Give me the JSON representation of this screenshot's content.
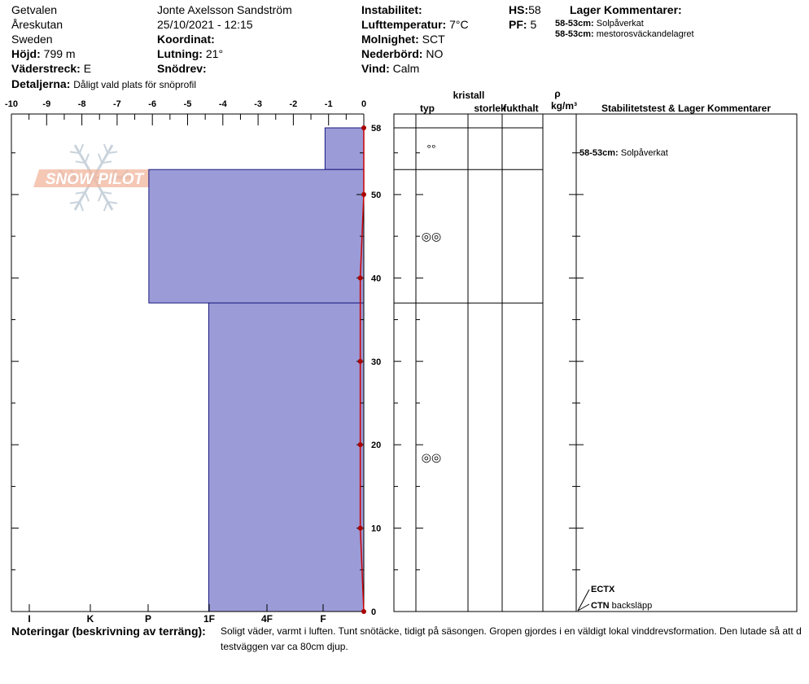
{
  "header": {
    "location": "Getvalen",
    "area": "Åreskutan",
    "country": "Sweden",
    "observer": "Jonte Axelsson Sandström",
    "datetime": "25/10/2021 - 12:15",
    "fields": [
      {
        "label": "Höjd:",
        "value": "799 m"
      },
      {
        "label": "Väderstreck:",
        "value": "E"
      },
      {
        "label": "Koordinat:",
        "value": ""
      },
      {
        "label": "Lutning:",
        "value": "21°"
      },
      {
        "label": "Snödrev:",
        "value": ""
      },
      {
        "label": "Instabilitet:",
        "value": ""
      },
      {
        "label": "Lufttemperatur:",
        "value": "7°C"
      },
      {
        "label": "Molnighet:",
        "value": "SCT"
      },
      {
        "label": "Nederbörd:",
        "value": "NO"
      },
      {
        "label": "Vind:",
        "value": "Calm"
      },
      {
        "label": "HS:",
        "value": "58"
      },
      {
        "label": "PF:",
        "value": "5"
      }
    ],
    "details_label": "Detaljerna:",
    "details_value": "Dåligt vald plats för snöprofil",
    "layer_comments_title": "Lager Kommentarer:",
    "layer_comments": [
      {
        "range": "58-53cm:",
        "text": "Solpåverkat"
      },
      {
        "range": "58-53cm:",
        "text": "mestorosväckandelagret"
      }
    ]
  },
  "columns": {
    "kristall": "kristall",
    "typ": "typ",
    "storlek": "storlek",
    "fukthalt": "fukthalt",
    "rho": "ρ",
    "rho_unit": "kg/m³",
    "stability": "Stabilitetstest & Lager Kommentarer"
  },
  "stability_comment": {
    "range": "58-53cm:",
    "text": "Solpåverkat"
  },
  "tests": [
    {
      "name": "ECTX",
      "text": ""
    },
    {
      "name": "CTN",
      "text": "backsläpp"
    }
  ],
  "notes": {
    "label": "Noteringar (beskrivning av terräng):",
    "line1": "Soligt väder, varmt i luften. Tunt snötäcke, tidigt på säsongen. Gropen gjordes i en väldigt lokal vinddrevsformation. Den lutade så att d",
    "line2": "testväggen var ca 80cm djup."
  },
  "logo_text": "SNOW PILOT",
  "colors": {
    "layer_fill": "#9b9bd7",
    "temp_line": "#cc0000"
  },
  "chart_data": {
    "type": "snow-profile",
    "temperature_axis": {
      "ticks": [
        "-10",
        "-9",
        "-8",
        "-7",
        "-6",
        "-5",
        "-4",
        "-3",
        "-2",
        "-1",
        "0"
      ],
      "range": [
        -10,
        0
      ]
    },
    "depth_axis": {
      "ticks": [
        "0",
        "10",
        "20",
        "30",
        "40",
        "50",
        "58"
      ],
      "range": [
        0,
        58
      ]
    },
    "hardness_axis": {
      "ticks": [
        "I",
        "K",
        "P",
        "1F",
        "4F",
        "F"
      ]
    },
    "layers": [
      {
        "top": 58,
        "bottom": 53,
        "hardness_temp_scale": -1.1
      },
      {
        "top": 53,
        "bottom": 37,
        "hardness_temp_scale": -6.1
      },
      {
        "top": 37,
        "bottom": 0,
        "hardness_temp_scale": -4.4
      }
    ],
    "crystals": [
      {
        "depth": 55.5,
        "glyph": "°°"
      },
      {
        "depth": 45,
        "glyph": "◎◎"
      },
      {
        "depth": 18.5,
        "glyph": "◎◎"
      }
    ],
    "temperature": [
      {
        "depth": 58,
        "temp": 0
      },
      {
        "depth": 50,
        "temp": 0
      },
      {
        "depth": 40,
        "temp": -0.1
      },
      {
        "depth": 30,
        "temp": -0.1
      },
      {
        "depth": 20,
        "temp": -0.1
      },
      {
        "depth": 10,
        "temp": -0.1
      },
      {
        "depth": 0,
        "temp": 0
      }
    ]
  }
}
